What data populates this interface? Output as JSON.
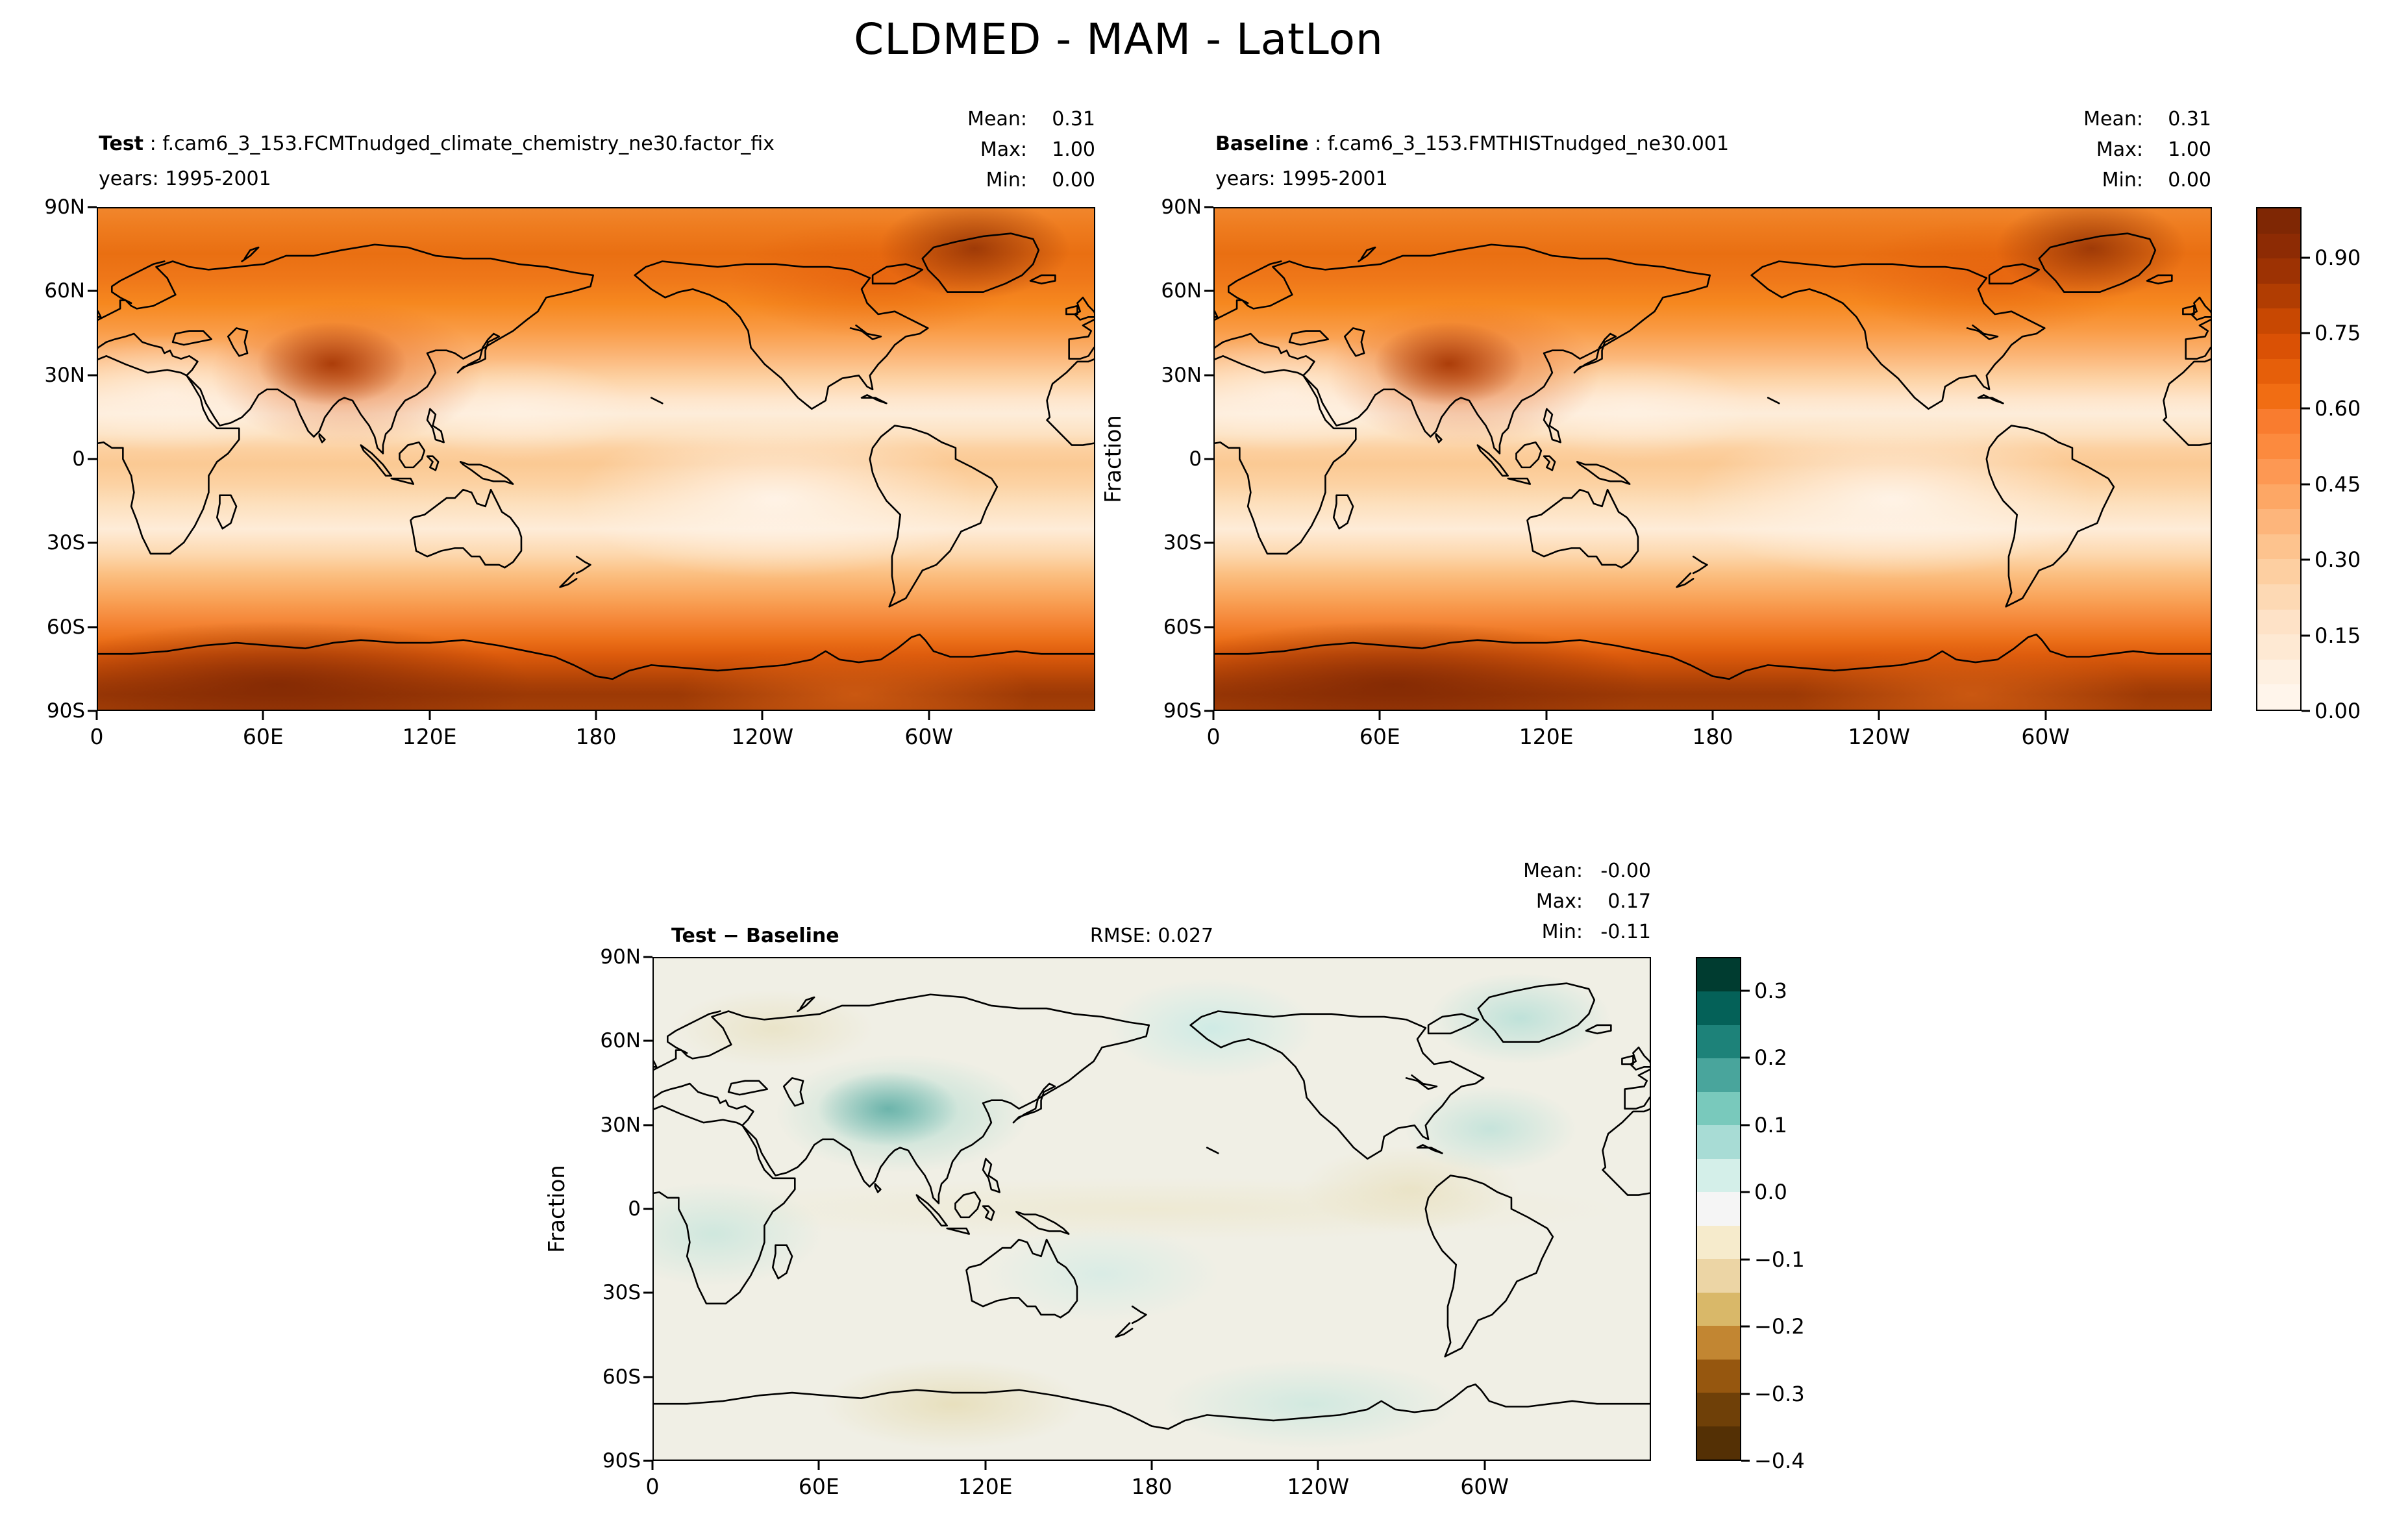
{
  "figure": {
    "title": "CLDMED - MAM - LatLon"
  },
  "axes": {
    "ylabel": "Fraction",
    "lat_ticks": [
      "90N",
      "60N",
      "30N",
      "0",
      "30S",
      "60S",
      "90S"
    ],
    "lon_ticks": [
      "0",
      "60E",
      "120E",
      "180",
      "120W",
      "60W"
    ]
  },
  "stats_labels": {
    "mean": "Mean:",
    "max": "Max:",
    "min": "Min:"
  },
  "panels": {
    "test": {
      "label": "Test",
      "name": " : f.cam6_3_153.FCMTnudged_climate_chemistry_ne30.factor_fix",
      "years": "years: 1995-2001",
      "stats": {
        "mean": "0.31",
        "max": "1.00",
        "min": "0.00"
      }
    },
    "baseline": {
      "label": "Baseline",
      "name": " : f.cam6_3_153.FMTHISTnudged_ne30.001",
      "years": "years: 1995-2001",
      "stats": {
        "mean": "0.31",
        "max": "1.00",
        "min": "0.00"
      }
    },
    "diff": {
      "label": "Test − Baseline",
      "rmse": "RMSE: 0.027",
      "stats": {
        "mean": "-0.00",
        "max": "0.17",
        "min": "-0.11"
      }
    }
  },
  "chart_data": [
    {
      "id": "test-map",
      "type": "heatmap",
      "variable": "CLDMED",
      "season": "MAM",
      "projection": "LatLon",
      "title": "Test : f.cam6_3_153.FCMTnudged_climate_chemistry_ne30.factor_fix",
      "subtitle": "years: 1995-2001",
      "units": "Fraction",
      "stats": {
        "mean": 0.31,
        "max": 1.0,
        "min": 0.0
      },
      "x_ticks_deg": [
        0,
        60,
        120,
        180,
        240,
        300
      ],
      "x_tick_labels": [
        "0",
        "60E",
        "120E",
        "180",
        "120W",
        "60W"
      ],
      "y_ticks_deg": [
        90,
        60,
        30,
        0,
        -30,
        -60,
        -90
      ],
      "y_tick_labels": [
        "90N",
        "60N",
        "30N",
        "0",
        "30S",
        "60S",
        "90S"
      ],
      "colormap": "Oranges",
      "colorbar": {
        "range": [
          0,
          1
        ],
        "ticks": [
          {
            "v": 0.9,
            "label": "0.90"
          },
          {
            "v": 0.75,
            "label": "0.75"
          },
          {
            "v": 0.6,
            "label": "0.60"
          },
          {
            "v": 0.45,
            "label": "0.45"
          },
          {
            "v": 0.3,
            "label": "0.30"
          },
          {
            "v": 0.15,
            "label": "0.15"
          },
          {
            "v": 0.0,
            "label": "0.00"
          }
        ],
        "colors": [
          "#fff5eb",
          "#fef0e1",
          "#fee9d3",
          "#fee2c7",
          "#fdd9b4",
          "#fdcfa1",
          "#fdc38e",
          "#fdb57b",
          "#fda765",
          "#fd9853",
          "#fc8a3e",
          "#f97c2f",
          "#f16d13",
          "#e65f0a",
          "#da5105",
          "#c84802",
          "#b13d02",
          "#9d3203",
          "#8d2b04",
          "#7f2704"
        ]
      },
      "zonal_mean_estimate": {
        "lat": [
          90,
          75,
          60,
          45,
          35,
          25,
          15,
          5,
          0,
          -5,
          -15,
          -25,
          -35,
          -45,
          -55,
          -65,
          -75,
          -85,
          -90
        ],
        "fraction": [
          0.55,
          0.62,
          0.6,
          0.45,
          0.22,
          0.08,
          0.18,
          0.3,
          0.33,
          0.28,
          0.15,
          0.1,
          0.28,
          0.45,
          0.6,
          0.72,
          0.88,
          0.75,
          0.7
        ]
      },
      "notable_features": [
        "dark maximum over Tibetan Plateau (~85E, 33N)",
        "dark maximum near Greenland / N Atlantic",
        "near-zero cloud fraction in subtropical belts",
        "moderate ITCZ band near equator",
        "very high fraction over Southern Ocean / Antarctic coast"
      ]
    },
    {
      "id": "baseline-map",
      "type": "heatmap",
      "variable": "CLDMED",
      "season": "MAM",
      "projection": "LatLon",
      "title": "Baseline : f.cam6_3_153.FMTHISTnudged_ne30.001",
      "subtitle": "years: 1995-2001",
      "units": "Fraction",
      "stats": {
        "mean": 0.31,
        "max": 1.0,
        "min": 0.0
      },
      "x_ticks_deg": [
        0,
        60,
        120,
        180,
        240,
        300
      ],
      "x_tick_labels": [
        "0",
        "60E",
        "120E",
        "180",
        "120W",
        "60W"
      ],
      "y_ticks_deg": [
        90,
        60,
        30,
        0,
        -30,
        -60,
        -90
      ],
      "y_tick_labels": [
        "90N",
        "60N",
        "30N",
        "0",
        "30S",
        "60S",
        "90S"
      ],
      "colormap": "Oranges",
      "colorbar_shared_with": "test-map",
      "zonal_mean_estimate": {
        "lat": [
          90,
          75,
          60,
          45,
          35,
          25,
          15,
          5,
          0,
          -5,
          -15,
          -25,
          -35,
          -45,
          -55,
          -65,
          -75,
          -85,
          -90
        ],
        "fraction": [
          0.55,
          0.62,
          0.6,
          0.45,
          0.22,
          0.08,
          0.18,
          0.3,
          0.33,
          0.28,
          0.15,
          0.1,
          0.28,
          0.45,
          0.6,
          0.72,
          0.88,
          0.75,
          0.7
        ]
      }
    },
    {
      "id": "diff-map",
      "type": "heatmap",
      "variable": "CLDMED",
      "season": "MAM",
      "projection": "LatLon",
      "title": "Test − Baseline",
      "rmse": 0.027,
      "units": "Fraction",
      "stats": {
        "mean": -0.0,
        "max": 0.17,
        "min": -0.11
      },
      "x_ticks_deg": [
        0,
        60,
        120,
        180,
        240,
        300
      ],
      "x_tick_labels": [
        "0",
        "60E",
        "120E",
        "180",
        "120W",
        "60W"
      ],
      "y_ticks_deg": [
        90,
        60,
        30,
        0,
        -30,
        -60,
        -90
      ],
      "y_tick_labels": [
        "90N",
        "60N",
        "30N",
        "0",
        "30S",
        "60S",
        "90S"
      ],
      "colormap": "BrBG",
      "colorbar": {
        "range": [
          -0.4,
          0.35
        ],
        "ticks": [
          {
            "v": 0.3,
            "label": "0.3"
          },
          {
            "v": 0.2,
            "label": "0.2"
          },
          {
            "v": 0.1,
            "label": "0.1"
          },
          {
            "v": 0.0,
            "label": "0.0"
          },
          {
            "v": -0.1,
            "label": "−0.1"
          },
          {
            "v": -0.2,
            "label": "−0.2"
          },
          {
            "v": -0.3,
            "label": "−0.3"
          },
          {
            "v": -0.4,
            "label": "−0.4"
          }
        ],
        "colors": [
          "#543005",
          "#6f4008",
          "#96570f",
          "#c28632",
          "#d9b869",
          "#ecd5a5",
          "#f6ebcc",
          "#f5f5f5",
          "#d4efe9",
          "#a8dcd5",
          "#79c9bc",
          "#49a59c",
          "#1d8279",
          "#046158",
          "#003c30"
        ]
      },
      "notable_features": [
        "positive (teal) anomaly up to ~0.17 over the Tibetan Plateau",
        "scattered weak anomalies of about ±0.05 elsewhere, field near zero overall"
      ]
    }
  ]
}
